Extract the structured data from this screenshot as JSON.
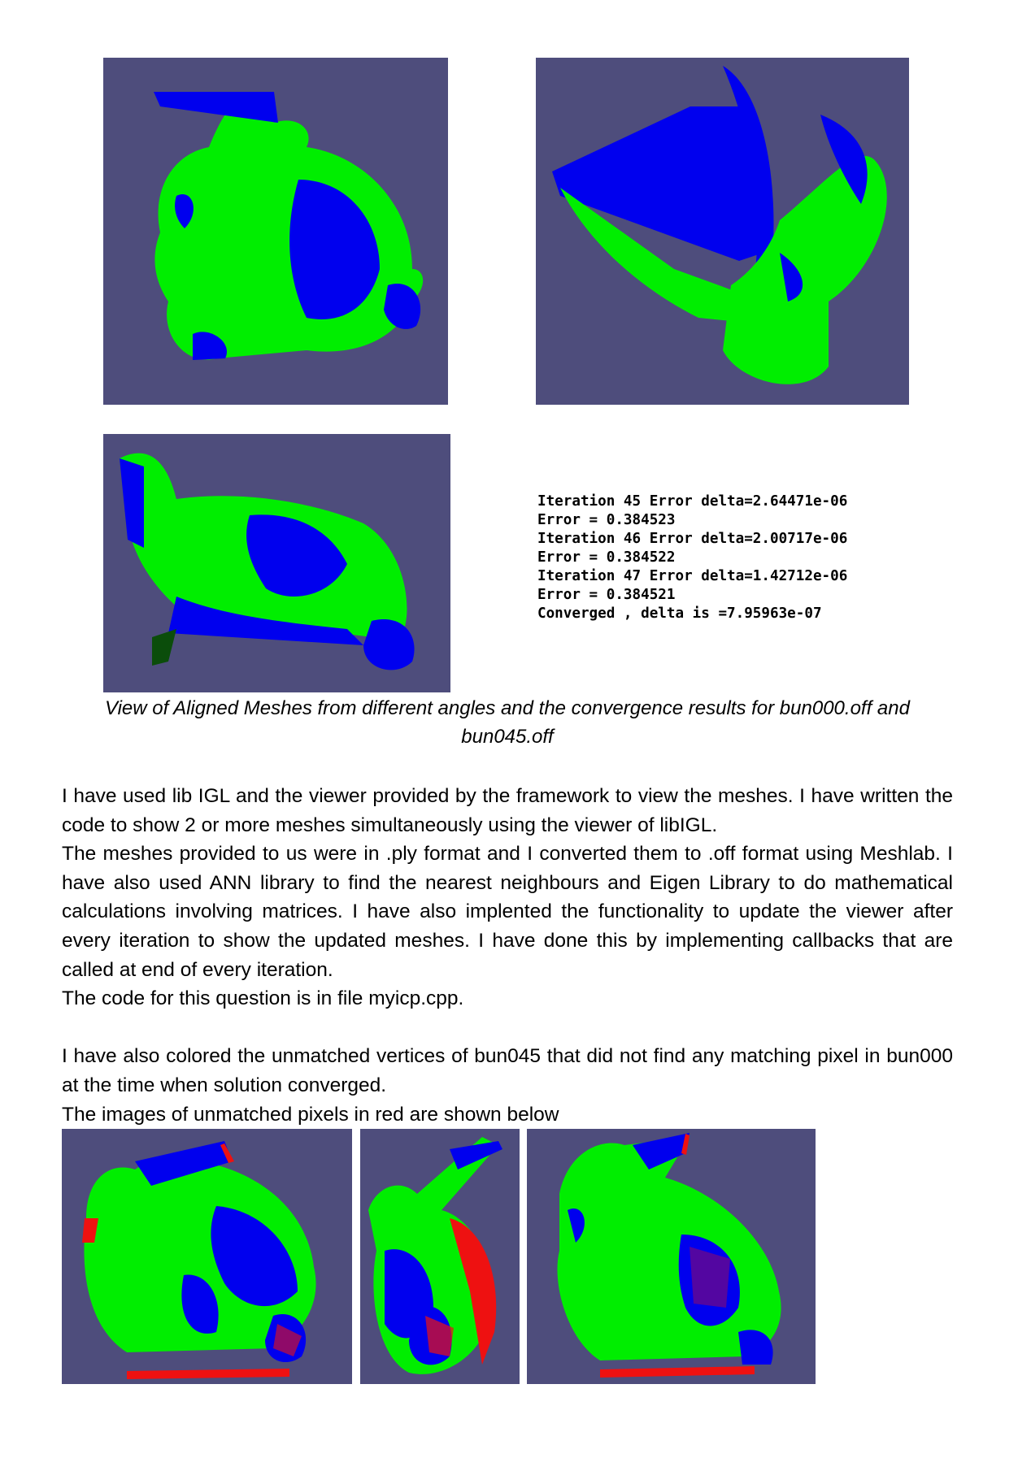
{
  "figures": {
    "top_row": [
      "bunny-aligned-view-1",
      "bunny-aligned-view-2"
    ],
    "middle_row": [
      "bunny-aligned-view-3"
    ],
    "bottom_row": [
      "bunny-unmatched-red-view-1",
      "bunny-unmatched-red-view-2",
      "bunny-unmatched-red-view-3"
    ],
    "colors": {
      "background": "#4e4d7c",
      "mesh_bun000": "#00ee00",
      "mesh_bun045": "#0000ee",
      "unmatched": "#ee1111"
    }
  },
  "convergence_log": [
    "Iteration 45 Error delta=2.64471e-06",
    "Error = 0.384523",
    "Iteration 46 Error delta=2.00717e-06",
    "Error = 0.384522",
    "Iteration 47 Error delta=1.42712e-06",
    "Error = 0.384521",
    "Converged , delta is =7.95963e-07"
  ],
  "caption": "View of Aligned Meshes from different angles and the convergence results for bun000.off and bun045.off",
  "paragraphs": [
    "I have used lib IGL and the viewer provided by the framework to view the meshes. I have written the code to show 2 or more meshes simultaneously using the viewer of libIGL.",
    "The meshes provided to us were in .ply format and I converted them to .off format using Meshlab. I have also used ANN library to find the nearest neighbours and Eigen Library to do mathematical calculations involving matrices. I have also implented the functionality to update the viewer after every iteration to show the updated meshes. I have done this by implementing callbacks that are called at end of every iteration.",
    "The code for this question is in file myicp.cpp.",
    "I have also colored the unmatched vertices of bun045 that did not find any matching pixel in bun000 at the time when solution converged.",
    "The images of unmatched pixels in red are shown below"
  ]
}
